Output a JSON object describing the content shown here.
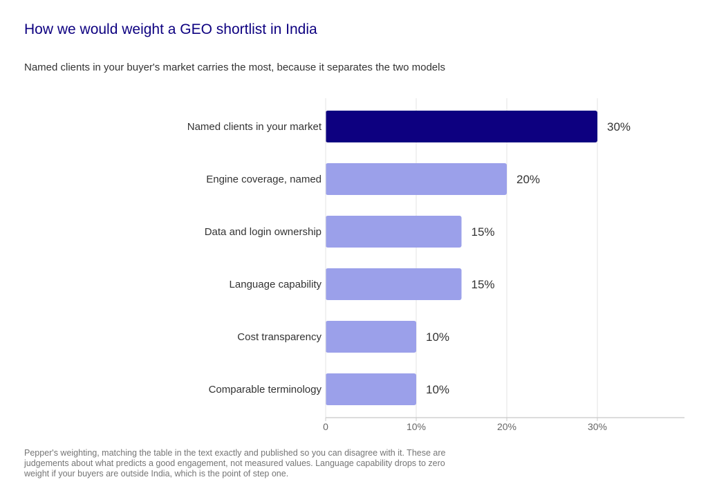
{
  "title": "How we would weight a GEO shortlist in India",
  "subtitle": "Named clients in your buyer's market carries the most, because it separates the two models",
  "footnote": "Pepper's weighting, matching the table in the text exactly and published so you can disagree with it. These are judgements about what predicts a good engagement, not measured values. Language capability drops to zero weight if your buyers are outside India, which is the point of step one.",
  "colors": {
    "highlight": "#0d0080",
    "bar": "#9ba0ea",
    "grid": "#e3e3e3",
    "axis": "#c8c8c8"
  },
  "chart_data": {
    "type": "bar",
    "orientation": "horizontal",
    "categories": [
      "Named clients in your market",
      "Engine coverage, named",
      "Data and login ownership",
      "Language capability",
      "Cost transparency",
      "Comparable terminology"
    ],
    "values": [
      30,
      20,
      15,
      15,
      10,
      10
    ],
    "value_labels": [
      "30%",
      "20%",
      "15%",
      "15%",
      "10%",
      "10%"
    ],
    "highlighted_index": 0,
    "xlim": [
      0,
      40
    ],
    "xticks": [
      0,
      10,
      20,
      30
    ],
    "xtick_labels": [
      "0",
      "10%",
      "20%",
      "30%"
    ],
    "grid": true
  }
}
